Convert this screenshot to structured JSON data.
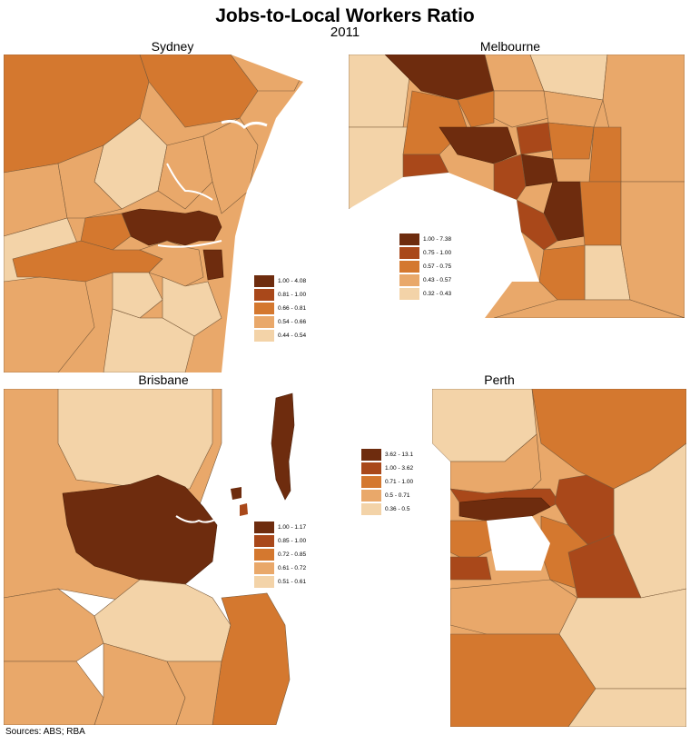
{
  "title": "Jobs-to-Local Workers Ratio",
  "subtitle": "2011",
  "source": "Sources: ABS; RBA",
  "colors": {
    "c5": "#6e2c0e",
    "c4": "#a9481a",
    "c3": "#d4782f",
    "c2": "#e9a86a",
    "c1": "#f3d3a8",
    "water": "#ffffff",
    "border": "#7a5a3a"
  },
  "panels": [
    {
      "name": "Sydney",
      "legend": [
        "1.00 - 4.08",
        "0.81 - 1.00",
        "0.66 - 0.81",
        "0.54 - 0.66",
        "0.44 - 0.54"
      ]
    },
    {
      "name": "Melbourne",
      "legend": [
        "1.00 - 7.38",
        "0.75 - 1.00",
        "0.57 - 0.75",
        "0.43 - 0.57",
        "0.32 - 0.43"
      ]
    },
    {
      "name": "Brisbane",
      "legend": [
        "1.00 - 1.17",
        "0.85 - 1.00",
        "0.72 - 0.85",
        "0.61 - 0.72",
        "0.51 - 0.61"
      ]
    },
    {
      "name": "Perth",
      "legend": [
        "3.62 - 13.1",
        "1.00 - 3.62",
        "0.71 - 1.00",
        "0.5 - 0.71",
        "0.36 - 0.5"
      ]
    }
  ]
}
